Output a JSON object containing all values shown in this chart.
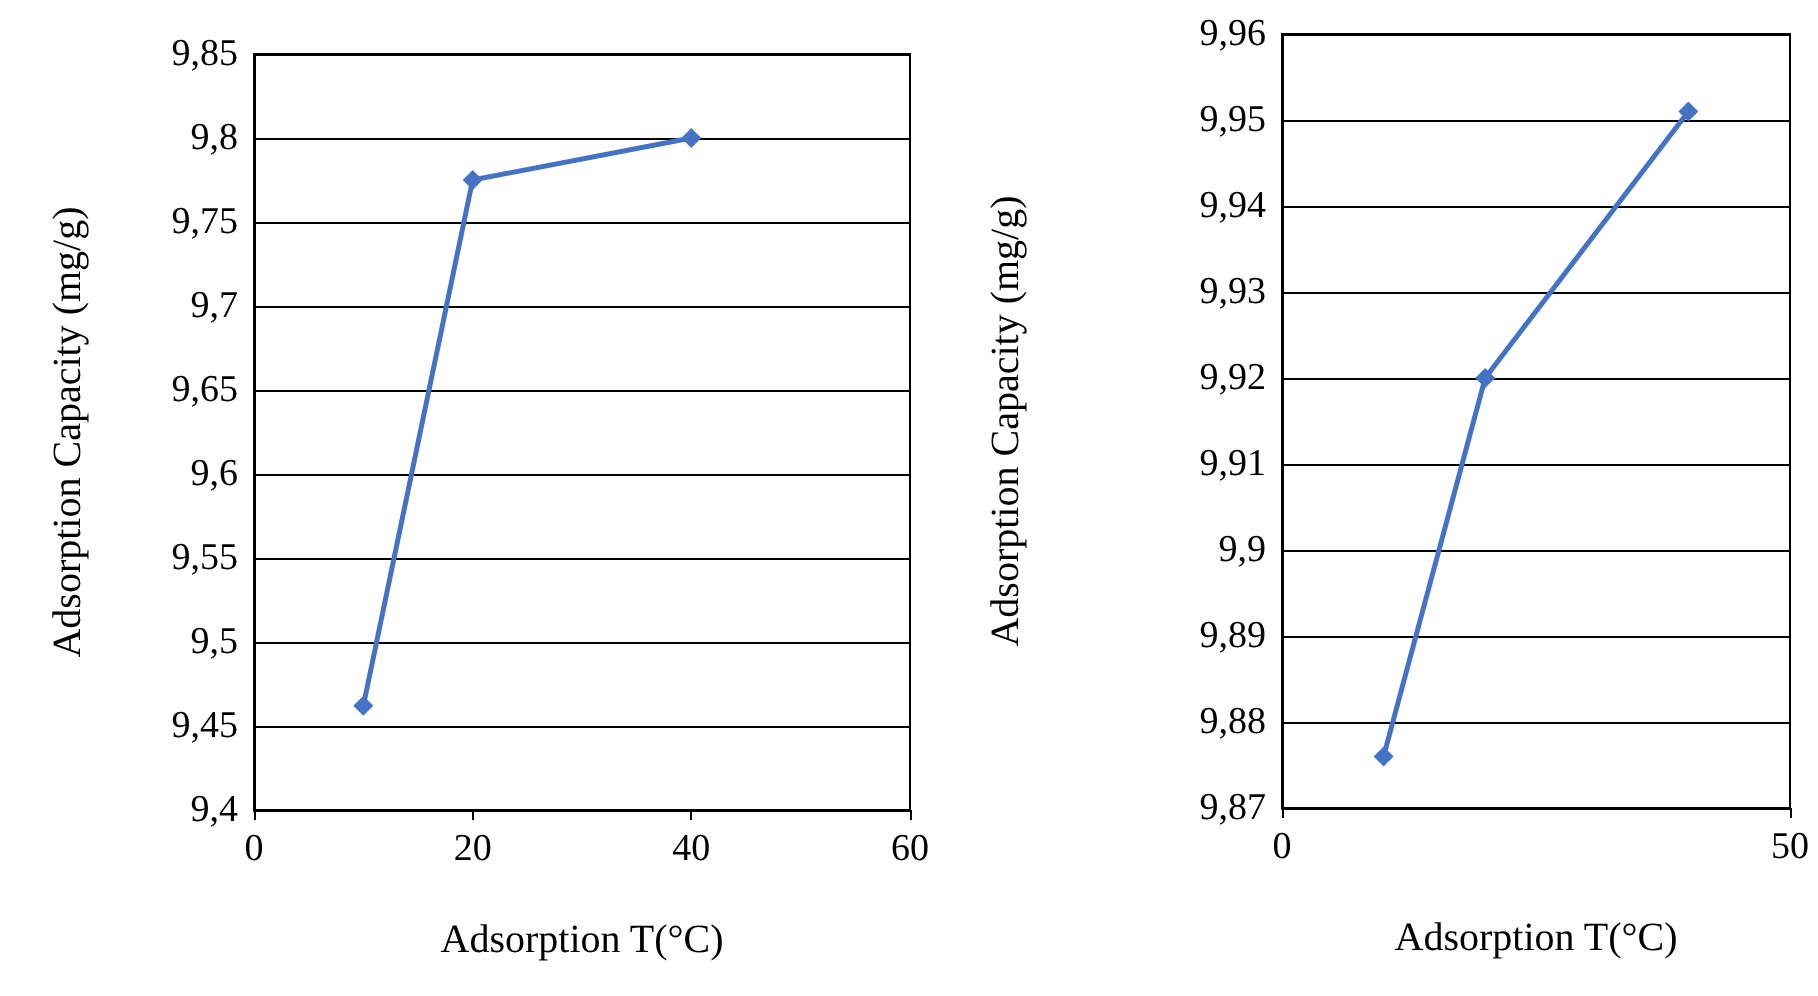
{
  "chart_data": [
    {
      "type": "line",
      "xlabel": "Adsorption T(°C)",
      "ylabel": "Adsorption Capacity (mg/g)",
      "x": [
        10,
        20,
        40
      ],
      "series": [
        {
          "color": "#4472c4",
          "values": [
            9.462,
            9.775,
            9.8
          ]
        }
      ],
      "xlim": [
        0,
        60
      ],
      "xticks": [
        0,
        20,
        40,
        60
      ],
      "ylim": [
        9.4,
        9.85
      ],
      "yticks": [
        {
          "value": 9.4,
          "label": "9,4"
        },
        {
          "value": 9.45,
          "label": "9,45"
        },
        {
          "value": 9.5,
          "label": "9,5"
        },
        {
          "value": 9.55,
          "label": "9,55"
        },
        {
          "value": 9.6,
          "label": "9,6"
        },
        {
          "value": 9.65,
          "label": "9,65"
        },
        {
          "value": 9.7,
          "label": "9,7"
        },
        {
          "value": 9.75,
          "label": "9,75"
        },
        {
          "value": 9.8,
          "label": "9,8"
        },
        {
          "value": 9.85,
          "label": "9,85"
        }
      ],
      "grid": "y",
      "marker": "diamond",
      "line_style": "solid"
    },
    {
      "type": "line",
      "xlabel": "Adsorption T(°C)",
      "ylabel": "Adsorption Capacity (mg/g)",
      "x": [
        10,
        20,
        40
      ],
      "series": [
        {
          "color": "#4472c4",
          "values": [
            9.876,
            9.92,
            9.951
          ]
        }
      ],
      "xlim": [
        0,
        50
      ],
      "xticks": [
        0,
        50
      ],
      "ylim": [
        9.87,
        9.96
      ],
      "yticks": [
        {
          "value": 9.87,
          "label": "9,87"
        },
        {
          "value": 9.88,
          "label": "9,88"
        },
        {
          "value": 9.89,
          "label": "9,89"
        },
        {
          "value": 9.9,
          "label": "9,9"
        },
        {
          "value": 9.91,
          "label": "9,91"
        },
        {
          "value": 9.92,
          "label": "9,92"
        },
        {
          "value": 9.93,
          "label": "9,93"
        },
        {
          "value": 9.94,
          "label": "9,94"
        },
        {
          "value": 9.95,
          "label": "9,95"
        },
        {
          "value": 9.96,
          "label": "9,96"
        }
      ],
      "grid": "y",
      "marker": "diamond",
      "line_style": "solid"
    }
  ]
}
